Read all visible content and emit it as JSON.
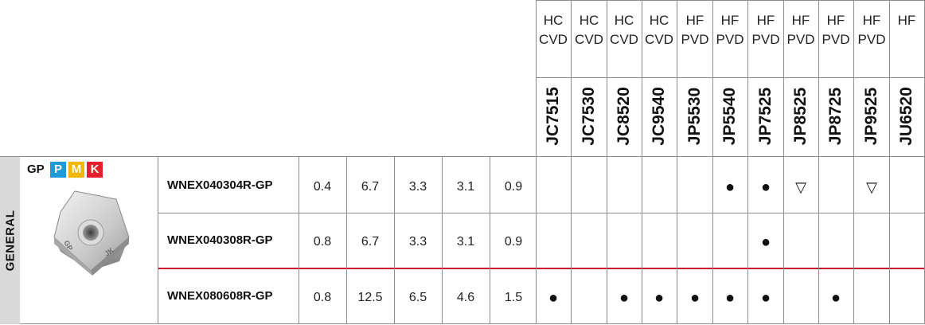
{
  "grades": [
    {
      "type_line1": "HC",
      "type_line2": "CVD",
      "code": "JC7515"
    },
    {
      "type_line1": "HC",
      "type_line2": "CVD",
      "code": "JC7530"
    },
    {
      "type_line1": "HC",
      "type_line2": "CVD",
      "code": "JC8520"
    },
    {
      "type_line1": "HC",
      "type_line2": "CVD",
      "code": "JC9540"
    },
    {
      "type_line1": "HF",
      "type_line2": "PVD",
      "code": "JP5530"
    },
    {
      "type_line1": "HF",
      "type_line2": "PVD",
      "code": "JP5540"
    },
    {
      "type_line1": "HF",
      "type_line2": "PVD",
      "code": "JP7525"
    },
    {
      "type_line1": "HF",
      "type_line2": "PVD",
      "code": "JP8525"
    },
    {
      "type_line1": "HF",
      "type_line2": "PVD",
      "code": "JP8725"
    },
    {
      "type_line1": "HF",
      "type_line2": "PVD",
      "code": "JP9525"
    },
    {
      "type_line1": "HF",
      "type_line2": "",
      "code": "JU6520"
    }
  ],
  "group": {
    "label": "GENERAL"
  },
  "category": {
    "label": "GP",
    "materials": [
      {
        "letter": "P",
        "color": "#1e9bd7"
      },
      {
        "letter": "M",
        "color": "#f2b705"
      },
      {
        "letter": "K",
        "color": "#e4202a"
      }
    ],
    "insert_image": "wnex-gp-insert-icon",
    "insert_markings": [
      "GP",
      "JK"
    ]
  },
  "rows": [
    {
      "part": "WNEX040304R-GP",
      "values": [
        "0.4",
        "6.7",
        "3.3",
        "3.1",
        "0.9"
      ],
      "marks": [
        "",
        "",
        "",
        "",
        "",
        "●",
        "●",
        "▽",
        "",
        "▽",
        ""
      ]
    },
    {
      "part": "WNEX040308R-GP",
      "values": [
        "0.8",
        "6.7",
        "3.3",
        "3.1",
        "0.9"
      ],
      "marks": [
        "",
        "",
        "",
        "",
        "",
        "",
        "●",
        "",
        "",
        "",
        ""
      ]
    },
    {
      "part": "WNEX080608R-GP",
      "values": [
        "0.8",
        "12.5",
        "6.5",
        "4.6",
        "1.5"
      ],
      "marks": [
        "●",
        "",
        "●",
        "●",
        "●",
        "●",
        "●",
        "",
        "●",
        "",
        ""
      ]
    }
  ]
}
